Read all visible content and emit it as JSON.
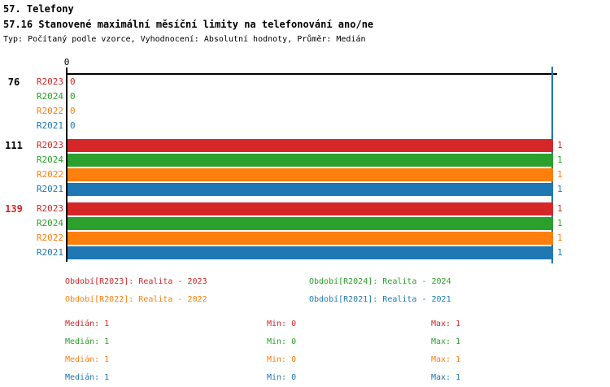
{
  "page": {
    "title": "57. Telefony",
    "subtitle": "57.16 Stanovené maximální měsíční limity na telefonování ano/ne",
    "meta": "Typ: Počítaný podle vzorce, Vyhodnocení: Absolutní hodnoty, Průměr: Medián"
  },
  "colors": {
    "R2023": "#d62728",
    "R2024": "#2ca02c",
    "R2022": "#ff7f0e",
    "R2021": "#1f77b4",
    "black": "#000000"
  },
  "chart_data": {
    "type": "bar",
    "orientation": "horizontal",
    "x_axis": {
      "min": 0,
      "max": 1,
      "zero_tick_label": "0"
    },
    "marker_line": {
      "value": 1,
      "color": "#1f77b4"
    },
    "series_colors": {
      "R2023": "#d62728",
      "R2024": "#2ca02c",
      "R2022": "#ff7f0e",
      "R2021": "#1f77b4"
    },
    "groups": [
      {
        "label": "76",
        "label_color": "#000000",
        "rows": [
          {
            "period": "R2023",
            "value": 0
          },
          {
            "period": "R2024",
            "value": 0
          },
          {
            "period": "R2022",
            "value": 0
          },
          {
            "period": "R2021",
            "value": 0
          }
        ]
      },
      {
        "label": "111",
        "label_color": "#000000",
        "rows": [
          {
            "period": "R2023",
            "value": 1
          },
          {
            "period": "R2024",
            "value": 1
          },
          {
            "period": "R2022",
            "value": 1
          },
          {
            "period": "R2021",
            "value": 1
          }
        ]
      },
      {
        "label": "139",
        "label_color": "#d62728",
        "rows": [
          {
            "period": "R2023",
            "value": 1
          },
          {
            "period": "R2024",
            "value": 1
          },
          {
            "period": "R2022",
            "value": 1
          },
          {
            "period": "R2021",
            "value": 1
          }
        ]
      }
    ]
  },
  "legend": {
    "columns": [
      [
        {
          "period": "R2023",
          "label": "Období[R2023]: Realita - 2023"
        },
        {
          "period": "R2022",
          "label": "Období[R2022]: Realita - 2022"
        }
      ],
      [
        {
          "period": "R2024",
          "label": "Období[R2024]: Realita - 2024"
        },
        {
          "period": "R2021",
          "label": "Období[R2021]: Realita - 2021"
        }
      ]
    ]
  },
  "stats": {
    "rows": [
      {
        "period": "R2023",
        "median": "Medián: 1",
        "min": "Min: 0",
        "max": "Max: 1"
      },
      {
        "period": "R2024",
        "median": "Medián: 1",
        "min": "Min: 0",
        "max": "Max: 1"
      },
      {
        "period": "R2022",
        "median": "Medián: 1",
        "min": "Min: 0",
        "max": "Max: 1"
      },
      {
        "period": "R2021",
        "median": "Medián: 1",
        "min": "Min: 0",
        "max": "Max: 1"
      }
    ]
  }
}
